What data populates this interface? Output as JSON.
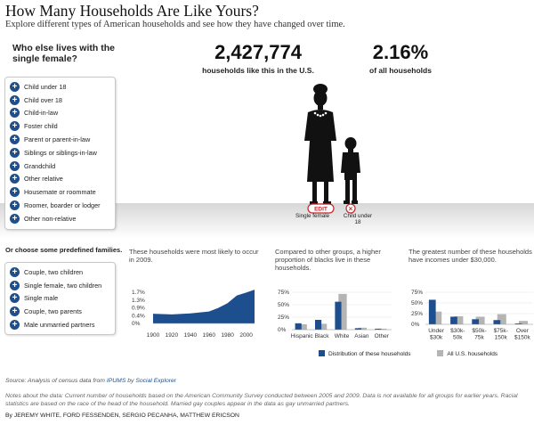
{
  "header": {
    "title": "How Many Households Are Like Yours?",
    "subtitle": "Explore different types of American households and see how they have changed over time."
  },
  "sidebar": {
    "question": "Who else lives with the single female?",
    "relations": [
      "Child under 18",
      "Child over 18",
      "Child-in-law",
      "Foster child",
      "Parent or parent-in-law",
      "Siblings or siblings-in-law",
      "Grandchild",
      "Other relative",
      "Housemate or roommate",
      "Roomer, boarder or lodger",
      "Other non-relative"
    ],
    "predefined_label": "Or choose some predefined families.",
    "families": [
      "Couple, two children",
      "Single female, two children",
      "Single male",
      "Couple, two parents",
      "Male unmarried partners"
    ]
  },
  "stats": {
    "count": "2,427,774",
    "count_label": "households like this in the U.S.",
    "percent": "2.16%",
    "percent_label": "of all households"
  },
  "figures": {
    "edit_label": "EDIT",
    "remove_label": "×",
    "female_caption": "Single female",
    "child_caption": "Child under 18"
  },
  "colors": {
    "accent": "#1d4f8f",
    "comparison": "#b4b4b4",
    "edit_red": "#c0272d"
  },
  "chart_data": [
    {
      "type": "area",
      "title": "These households were most likely to occur in 2009.",
      "x": [
        1900,
        1920,
        1940,
        1960,
        1970,
        1980,
        1990,
        2000,
        2009
      ],
      "values": [
        0.5,
        0.47,
        0.52,
        0.62,
        0.8,
        1.05,
        1.45,
        1.6,
        1.75
      ],
      "x_ticks": [
        "1900",
        "1920",
        "1940",
        "1960",
        "1980",
        "2000"
      ],
      "y_ticks": [
        "1.7%",
        "1.3%",
        "0.9%",
        "0.4%",
        "0%"
      ],
      "ylim": [
        0,
        1.8
      ]
    },
    {
      "type": "bar",
      "title": "Compared to other groups, a higher proportion of blacks live in these households.",
      "categories": [
        "Hispanic",
        "Black",
        "White",
        "Asian",
        "Other"
      ],
      "series": [
        {
          "name": "Distribution of these households",
          "values": [
            13,
            20,
            57,
            3,
            2
          ]
        },
        {
          "name": "All U.S. households",
          "values": [
            11,
            12,
            73,
            4,
            2
          ]
        }
      ],
      "y_ticks": [
        "75%",
        "50%",
        "25%",
        "0%"
      ],
      "ylim": [
        0,
        80
      ]
    },
    {
      "type": "bar",
      "title": "The greatest number of these households have incomes under $30,000.",
      "categories": [
        "Under $30k",
        "$30k-50k",
        "$50k-75k",
        "$75k-150k",
        "Over $150k"
      ],
      "x_label_lines": [
        [
          "Under",
          "$30k"
        ],
        [
          "$30k-",
          "50k"
        ],
        [
          "$50k-",
          "75k"
        ],
        [
          "$75k-",
          "150k"
        ],
        [
          "Over",
          "$150k"
        ]
      ],
      "series": [
        {
          "name": "Distribution of these households",
          "values": [
            58,
            18,
            12,
            10,
            2
          ]
        },
        {
          "name": "All U.S. households",
          "values": [
            30,
            19,
            18,
            24,
            8
          ]
        }
      ],
      "y_ticks": [
        "75%",
        "50%",
        "25%",
        "0%"
      ],
      "ylim": [
        0,
        80
      ]
    }
  ],
  "legend": {
    "series1": "Distribution of these households",
    "series2": "All U.S. households"
  },
  "footer": {
    "source_prefix": "Source: Analysis of census data from",
    "source_link1": "IPUMS",
    "source_mid": "by",
    "source_link2": "Social Explorer",
    "notes": "Notes about the data: Current number of households based on the American Community Survey conducted between 2005 and 2009. Data is not available for all groups for earlier years. Racial statistics are based on the race of the head of the household. Married gay couples appear in the data as gay unmarried partners.",
    "byline": "By JEREMY WHITE, FORD FESSENDEN, SERGIO PECANHA, MATTHEW ERICSON"
  }
}
